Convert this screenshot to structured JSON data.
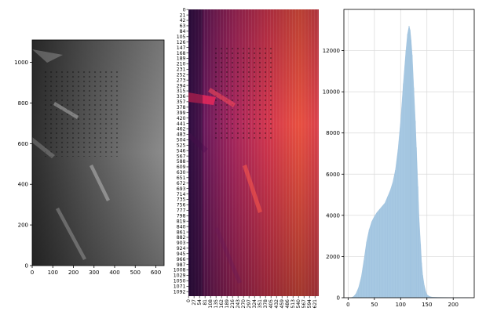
{
  "chart_data": [
    {
      "type": "image",
      "description_free": true,
      "x_ticks": [
        0,
        100,
        200,
        300,
        400,
        500,
        600
      ],
      "x_tick_labels": [
        "0",
        "100",
        "200",
        "300",
        "400",
        "500",
        "600"
      ],
      "y_ticks": [
        0,
        200,
        400,
        600,
        800,
        1000
      ],
      "y_tick_labels": [
        "0",
        "200",
        "400",
        "600",
        "800",
        "1000"
      ],
      "xlim": [
        0,
        640
      ],
      "ylim": [
        0,
        1110
      ],
      "colormap": "gray"
    },
    {
      "type": "heatmap",
      "colormap": "inferno",
      "x_tick_labels": [
        "0",
        "27",
        "54",
        "81",
        "108",
        "135",
        "162",
        "189",
        "216",
        "243",
        "270",
        "297",
        "324",
        "351",
        "378",
        "405",
        "432",
        "459",
        "486",
        "513",
        "540",
        "567",
        "594",
        "621"
      ],
      "y_tick_labels": [
        "0",
        "21",
        "42",
        "63",
        "84",
        "105",
        "126",
        "147",
        "168",
        "189",
        "210",
        "231",
        "252",
        "273",
        "294",
        "315",
        "336",
        "357",
        "378",
        "399",
        "420",
        "441",
        "462",
        "483",
        "504",
        "525",
        "546",
        "567",
        "588",
        "609",
        "630",
        "651",
        "672",
        "693",
        "714",
        "735",
        "756",
        "777",
        "798",
        "819",
        "840",
        "861",
        "882",
        "903",
        "924",
        "945",
        "966",
        "987",
        "1008",
        "1029",
        "1050",
        "1071",
        "1092"
      ],
      "rows": 1110,
      "cols": 640
    },
    {
      "type": "bar",
      "kind": "histogram",
      "color": "#a6c8e2",
      "grid": true,
      "xlim": [
        -8,
        240
      ],
      "ylim": [
        0,
        14000
      ],
      "x_ticks": [
        0,
        50,
        100,
        150,
        200
      ],
      "x_tick_labels": [
        "0",
        "50",
        "100",
        "150",
        "200"
      ],
      "y_ticks": [
        0,
        2000,
        4000,
        6000,
        8000,
        10000,
        12000
      ],
      "y_tick_labels": [
        "0",
        "2000",
        "4000",
        "6000",
        "8000",
        "10000",
        "12000"
      ],
      "x": [
        0,
        5,
        10,
        15,
        20,
        25,
        30,
        35,
        40,
        45,
        50,
        55,
        60,
        65,
        70,
        75,
        80,
        85,
        90,
        95,
        100,
        105,
        110,
        113,
        116,
        118,
        120,
        122,
        125,
        128,
        130,
        133,
        135,
        138,
        140,
        142,
        145,
        148,
        150,
        155,
        160,
        170,
        180,
        190,
        200,
        210,
        220,
        230
      ],
      "values": [
        0,
        0,
        50,
        200,
        500,
        1000,
        1800,
        2700,
        3300,
        3700,
        3950,
        4150,
        4300,
        4450,
        4600,
        4900,
        5200,
        5600,
        6200,
        7200,
        8600,
        10400,
        12000,
        12800,
        13200,
        13000,
        12500,
        11800,
        10200,
        8600,
        7300,
        5400,
        3900,
        2600,
        1700,
        1100,
        600,
        300,
        150,
        60,
        30,
        20,
        15,
        10,
        5,
        0,
        0,
        0
      ]
    }
  ]
}
